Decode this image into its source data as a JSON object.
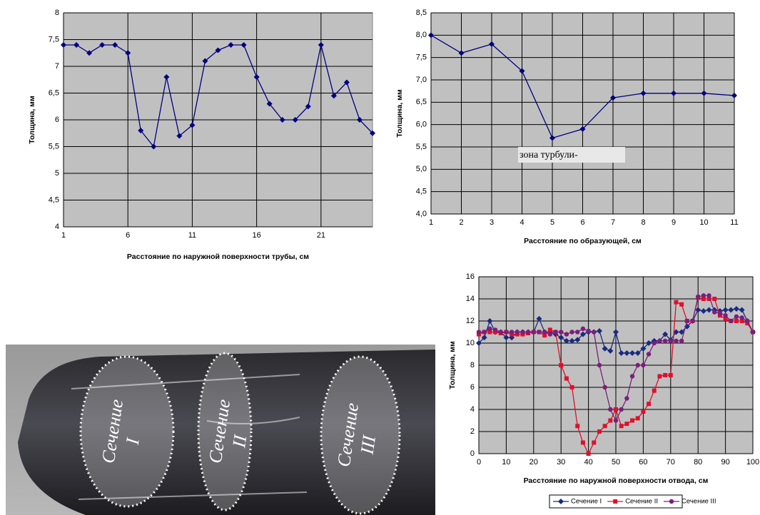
{
  "chart_data": [
    {
      "type": "line",
      "y_label": "Толщина, мм",
      "x_label": "Расстояние по наружной поверхности трубы, см",
      "x": [
        1,
        2,
        3,
        4,
        5,
        6,
        7,
        8,
        9,
        10,
        11,
        12,
        13,
        14,
        15,
        16,
        17,
        18,
        19,
        20,
        21,
        22,
        23,
        24,
        25
      ],
      "series": [
        {
          "color": "#000080",
          "marker": "diamond",
          "values": [
            7.4,
            7.4,
            7.25,
            7.4,
            7.4,
            7.25,
            5.8,
            5.5,
            6.8,
            5.7,
            5.9,
            7.1,
            7.3,
            7.4,
            7.4,
            6.8,
            6.3,
            6.0,
            6.0,
            6.25,
            7.4,
            6.45,
            6.7,
            6.0,
            5.75
          ]
        }
      ],
      "xlim": [
        1,
        25
      ],
      "xticks": [
        1,
        6,
        11,
        16,
        21
      ],
      "ylim": [
        4,
        8
      ],
      "yticks": [
        4,
        {
          "value": 4.5,
          "label": "4,5"
        },
        5,
        {
          "value": 5.5,
          "label": "5,5"
        },
        6,
        {
          "value": 6.5,
          "label": "6,5"
        },
        7,
        {
          "value": 7.5,
          "label": "7,5"
        },
        8
      ],
      "grid": true
    },
    {
      "type": "line",
      "y_label": "Толщина, мм",
      "x_label": "Расстояние по образующей, см",
      "annotation": "зона турбули-",
      "x": [
        1,
        2,
        3,
        4,
        5,
        6,
        7,
        8,
        9,
        10,
        11
      ],
      "series": [
        {
          "color": "#000080",
          "marker": "diamond",
          "values": [
            8.0,
            7.6,
            7.8,
            7.2,
            5.7,
            5.9,
            6.6,
            6.7,
            6.7,
            6.7,
            6.65
          ]
        }
      ],
      "xlim": [
        1,
        11
      ],
      "xticks": [
        1,
        2,
        3,
        4,
        5,
        6,
        7,
        8,
        9,
        10,
        11
      ],
      "ylim": [
        4,
        8.5
      ],
      "yticks": [
        {
          "value": 4,
          "label": "4,0"
        },
        {
          "value": 4.5,
          "label": "4,5"
        },
        {
          "value": 5,
          "label": "5,0"
        },
        {
          "value": 5.5,
          "label": "5,5"
        },
        {
          "value": 6,
          "label": "6,0"
        },
        {
          "value": 6.5,
          "label": "6,5"
        },
        {
          "value": 7,
          "label": "7,0"
        },
        {
          "value": 7.5,
          "label": "7,5"
        },
        {
          "value": 8,
          "label": "8,0"
        },
        {
          "value": 8.5,
          "label": "8,5"
        }
      ],
      "grid": true
    },
    {
      "type": "line",
      "y_label": "Толщина, мм",
      "x_label": "Расстояние по наружной поверхности отвода, см",
      "x": [
        0,
        2,
        4,
        6,
        8,
        10,
        12,
        14,
        16,
        18,
        20,
        22,
        24,
        26,
        28,
        30,
        32,
        34,
        36,
        38,
        40,
        42,
        44,
        46,
        48,
        50,
        52,
        54,
        56,
        58,
        60,
        62,
        64,
        66,
        68,
        70,
        72,
        74,
        76,
        78,
        80,
        82,
        84,
        86,
        88,
        90,
        92,
        94,
        96,
        98,
        100
      ],
      "series": [
        {
          "name": "Сечение I",
          "color": "#1a2a80",
          "marker": "diamond",
          "values": [
            10,
            10.5,
            12,
            11,
            11,
            10.5,
            10.5,
            11,
            11,
            11,
            11,
            12.2,
            11,
            11,
            10.8,
            10.5,
            10.2,
            10.2,
            10.3,
            10.8,
            11,
            11,
            11.1,
            9.5,
            9.3,
            11,
            9.1,
            9.1,
            9.1,
            9.1,
            9.5,
            10,
            10.2,
            10.2,
            10.8,
            10.3,
            11,
            11,
            11.5,
            12,
            13,
            12.9,
            13,
            13,
            12.9,
            13,
            13,
            13.1,
            13,
            12,
            11
          ]
        },
        {
          "name": "Сечение II",
          "color": "#e0102c",
          "marker": "square",
          "values": [
            10.8,
            11,
            11,
            11,
            10.9,
            11,
            10.8,
            10.8,
            10.8,
            10.9,
            11,
            11,
            10.7,
            11.2,
            11,
            8,
            6.8,
            6,
            2.5,
            1,
            0,
            1,
            2,
            2.5,
            3,
            4,
            2.5,
            2.7,
            3,
            3.2,
            3.8,
            4.5,
            5.7,
            7,
            7.1,
            7.1,
            13.7,
            13.5,
            12,
            12,
            14.1,
            14,
            14,
            14,
            12.5,
            12.2,
            12,
            12,
            12,
            11.8,
            11
          ]
        },
        {
          "name": "Сечение III",
          "color": "#7a1f7a",
          "marker": "circle",
          "values": [
            11,
            11,
            11.3,
            11.2,
            11,
            11,
            11,
            11,
            11,
            11,
            11,
            11,
            11,
            10.8,
            11,
            11,
            10.8,
            11,
            11,
            11.3,
            11.1,
            11,
            8,
            6,
            4,
            3,
            4,
            5,
            7,
            8,
            8,
            9,
            10,
            10.2,
            10.2,
            10.2,
            10.2,
            10.2,
            12,
            12,
            14.2,
            14.3,
            14.3,
            12.8,
            12.7,
            12.5,
            12,
            12.4,
            12.3,
            12,
            11
          ]
        }
      ],
      "xlim": [
        0,
        100
      ],
      "xticks": [
        0,
        10,
        20,
        30,
        40,
        50,
        60,
        70,
        80,
        90,
        100
      ],
      "ylim": [
        0,
        16
      ],
      "yticks": [
        0,
        2,
        4,
        6,
        8,
        10,
        12,
        14,
        16
      ],
      "grid": true,
      "legend": "bottom"
    }
  ],
  "photo": {
    "labels": [
      [
        "Сечение",
        "I"
      ],
      [
        "Сечение",
        "II"
      ],
      [
        "Сечение",
        "III"
      ]
    ]
  }
}
